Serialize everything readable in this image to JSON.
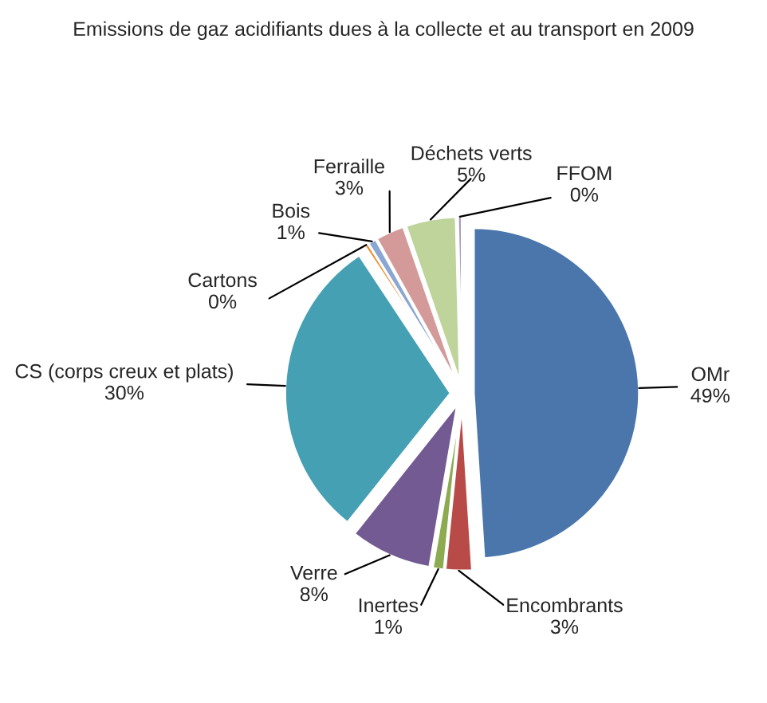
{
  "chart_data": {
    "type": "pie",
    "title": "Emissions de gaz acidifiants dues à la collecte et au transport en 2009",
    "categories": [
      "OMr",
      "Encombrants",
      "Inertes",
      "Verre",
      "CS (corps creux et plats)",
      "Cartons",
      "Bois",
      "Ferraille",
      "Déchets verts",
      "FFOM"
    ],
    "values": [
      49,
      2.6,
      1.1,
      8,
      30,
      0.4,
      0.8,
      2.8,
      4.9,
      0.4
    ],
    "value_labels": [
      "49%",
      "3%",
      "1%",
      "8%",
      "30%",
      "0%",
      "1%",
      "3%",
      "5%",
      "0%"
    ],
    "colors": [
      "#4a76ab",
      "#b84a47",
      "#8caa4f",
      "#735a93",
      "#45a0b4",
      "#f08c30",
      "#8aa6d2",
      "#d49a9a",
      "#bed49a",
      "#a99bc0"
    ],
    "legend": false
  }
}
